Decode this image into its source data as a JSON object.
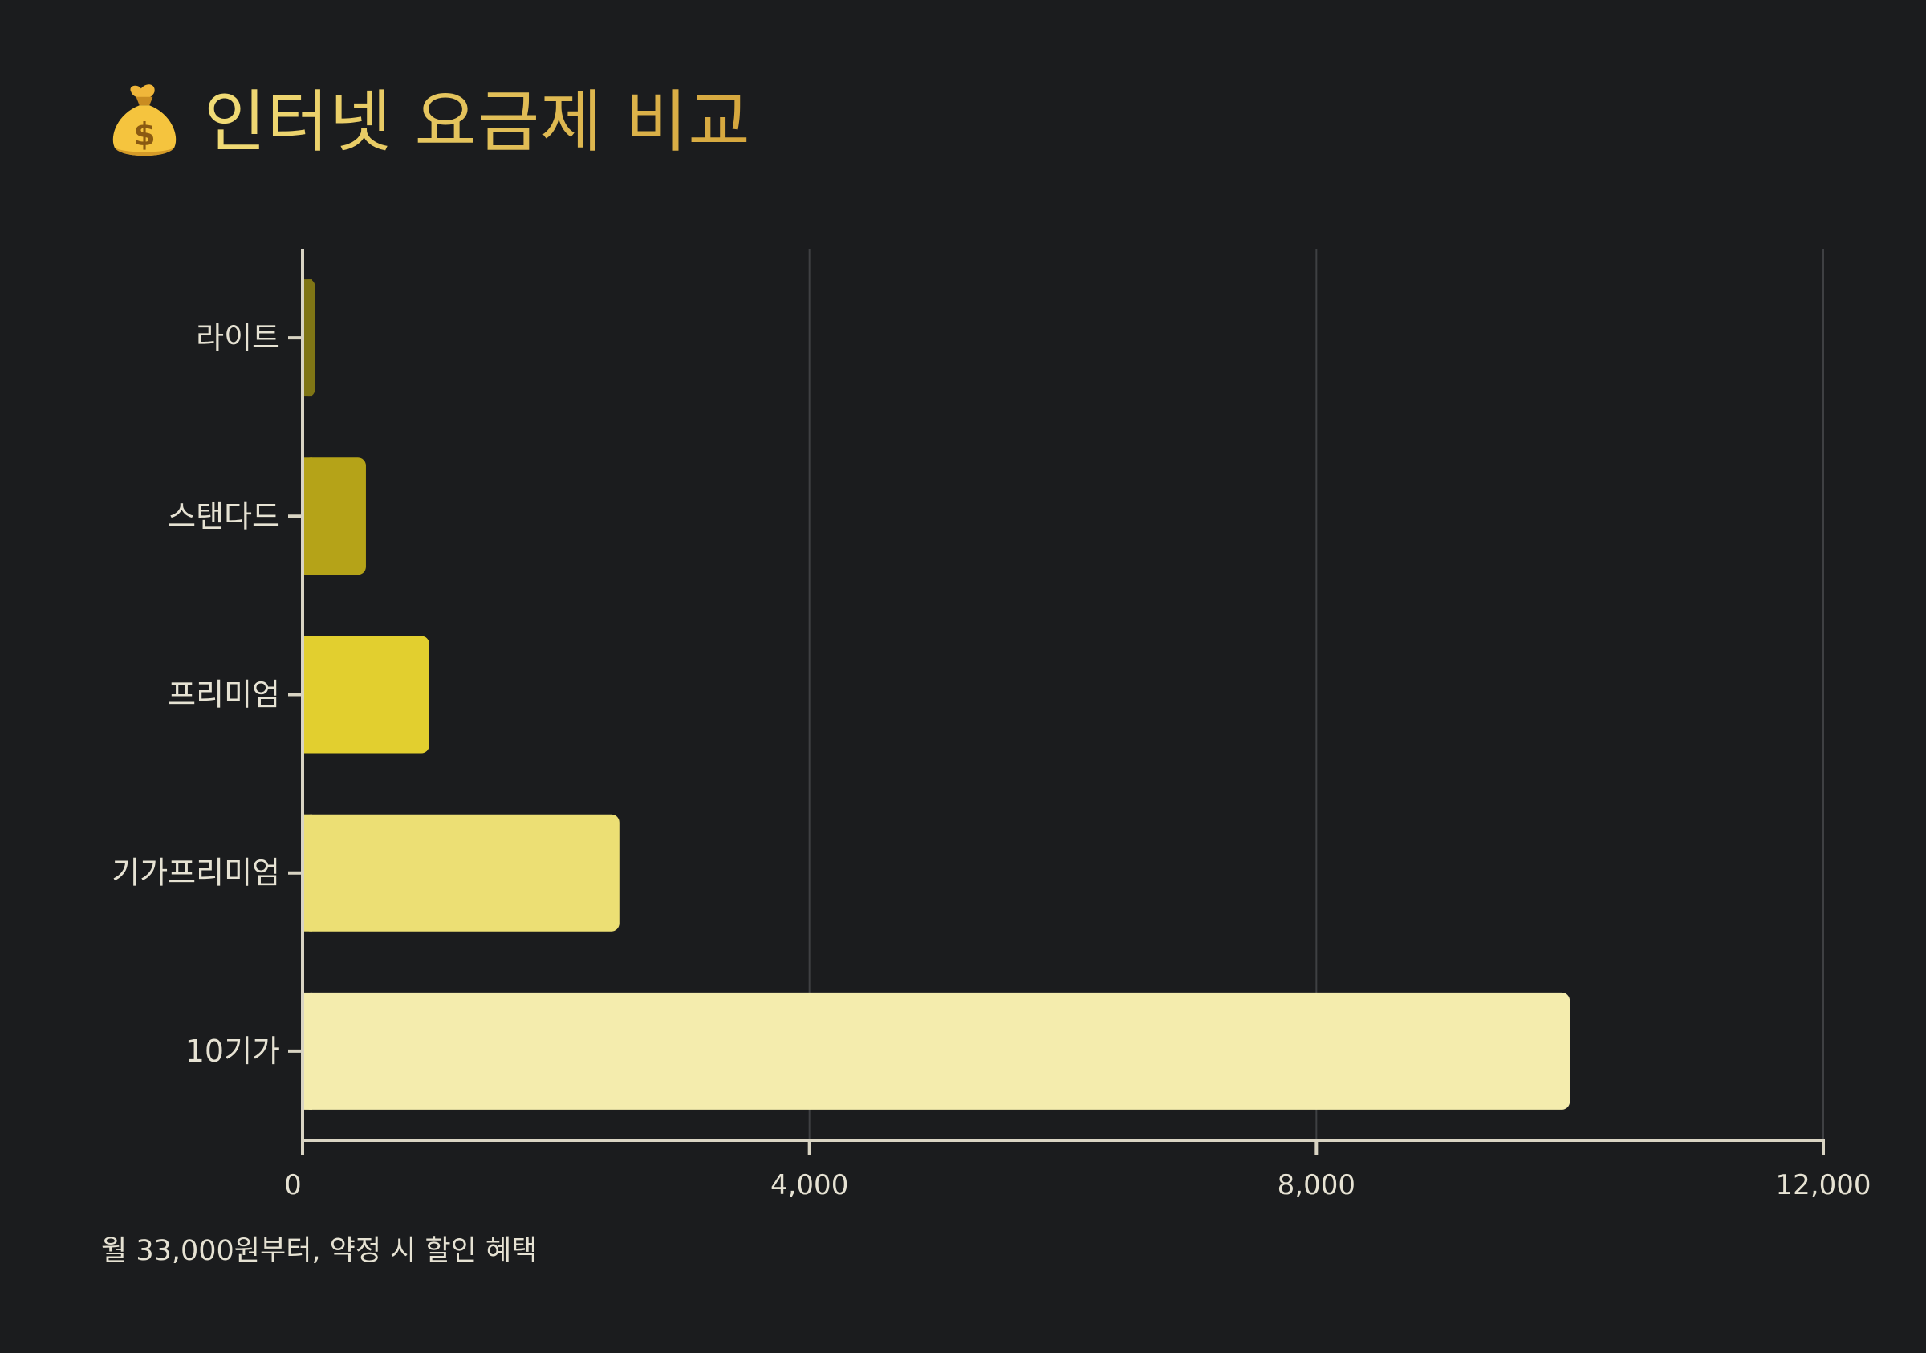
{
  "title": {
    "icon": "money-bag-icon",
    "text": "인터넷 요금제 비교"
  },
  "footnote": "월 33,000원부터, 약정 시 할인 혜택",
  "colors": {
    "background": "#1b1c1e",
    "axis": "#d9d4c3",
    "grid": "#3f4043",
    "tick_text": "#e6e2d3",
    "title_gradient_start": "#f1dc77",
    "title_gradient_end": "#d5a63d"
  },
  "chart_data": {
    "type": "bar",
    "orientation": "horizontal",
    "categories": [
      "라이트",
      "스탠다드",
      "프리미엄",
      "기가프리미엄",
      "10기가"
    ],
    "values": [
      100,
      500,
      1000,
      2500,
      10000
    ],
    "bar_colors": [
      "#7f7515",
      "#b5a318",
      "#e2cf2f",
      "#ecdf74",
      "#f4ecad"
    ],
    "xlim": [
      0,
      12000
    ],
    "xticks": [
      0,
      4000,
      8000,
      12000
    ],
    "xtick_labels": [
      "0",
      "4,000",
      "8,000",
      "12,000"
    ],
    "grid": "vertical",
    "title": "",
    "xlabel": "",
    "ylabel": ""
  }
}
